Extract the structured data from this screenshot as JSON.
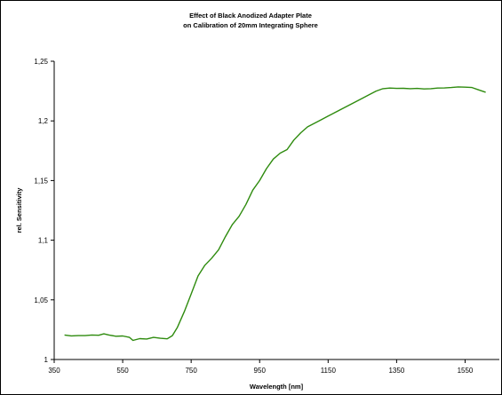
{
  "chart_data": {
    "type": "line",
    "title_lines": [
      "Effect of Black Anodized Adapter Plate",
      "on Calibration of 20mm Integrating Sphere"
    ],
    "xlabel": "Wavelength [nm]",
    "ylabel": "rel. Sensitivity",
    "xlim": [
      350,
      1650
    ],
    "ylim": [
      1,
      1.25
    ],
    "x_ticks": [
      350,
      550,
      750,
      950,
      1150,
      1350,
      1550
    ],
    "y_ticks": [
      1,
      1.05,
      1.1,
      1.15,
      1.2,
      1.25
    ],
    "x_tick_labels": [
      "350",
      "550",
      "750",
      "950",
      "1150",
      "1350",
      "1550"
    ],
    "y_tick_labels": [
      "1",
      "1,05",
      "1,1",
      "1,15",
      "1,2",
      "1,25"
    ],
    "grid": false,
    "legend": "none",
    "series": [
      {
        "color": "#2e8b0e",
        "x": [
          380,
          400,
          420,
          440,
          460,
          480,
          495,
          510,
          530,
          550,
          570,
          580,
          600,
          620,
          640,
          660,
          680,
          695,
          710,
          730,
          750,
          770,
          790,
          810,
          830,
          850,
          870,
          890,
          910,
          930,
          950,
          970,
          990,
          1010,
          1030,
          1050,
          1070,
          1090,
          1110,
          1130,
          1150,
          1170,
          1190,
          1210,
          1230,
          1250,
          1270,
          1290,
          1310,
          1330,
          1350,
          1370,
          1390,
          1410,
          1430,
          1450,
          1470,
          1490,
          1510,
          1530,
          1550,
          1570,
          1590,
          1610
        ],
        "y": [
          1.0205,
          1.0198,
          1.02,
          1.02,
          1.0205,
          1.0203,
          1.0215,
          1.0205,
          1.0195,
          1.0197,
          1.0185,
          1.016,
          1.0175,
          1.0172,
          1.0185,
          1.0178,
          1.0173,
          1.02,
          1.027,
          1.04,
          1.055,
          1.07,
          1.079,
          1.085,
          1.092,
          1.103,
          1.113,
          1.12,
          1.13,
          1.142,
          1.15,
          1.16,
          1.168,
          1.173,
          1.176,
          1.184,
          1.19,
          1.195,
          1.198,
          1.201,
          1.204,
          1.207,
          1.21,
          1.213,
          1.216,
          1.219,
          1.222,
          1.225,
          1.227,
          1.2275,
          1.2272,
          1.2273,
          1.227,
          1.2272,
          1.2268,
          1.227,
          1.2275,
          1.2276,
          1.228,
          1.2285,
          1.2283,
          1.228,
          1.226,
          1.224
        ]
      }
    ]
  }
}
